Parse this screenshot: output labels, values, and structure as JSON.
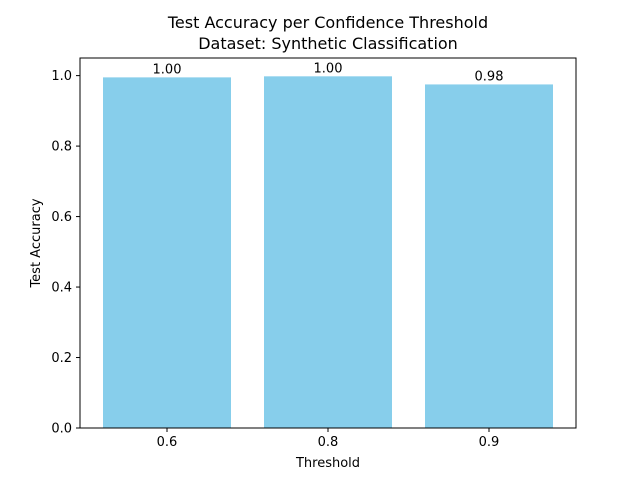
{
  "chart_data": {
    "type": "bar",
    "title": "Test Accuracy per Confidence Threshold",
    "subtitle": "Dataset: Synthetic Classification",
    "xlabel": "Threshold",
    "ylabel": "Test Accuracy",
    "categories": [
      "0.6",
      "0.8",
      "0.9"
    ],
    "values": [
      0.995,
      0.998,
      0.975
    ],
    "data_labels": [
      "1.00",
      "1.00",
      "0.98"
    ],
    "ylim": [
      0,
      1.05
    ],
    "yticks": [
      0.0,
      0.2,
      0.4,
      0.6,
      0.8,
      1.0
    ],
    "ytick_labels": [
      "0.0",
      "0.2",
      "0.4",
      "0.6",
      "0.8",
      "1.0"
    ],
    "grid": false,
    "bar_color": "#87ceeb"
  }
}
